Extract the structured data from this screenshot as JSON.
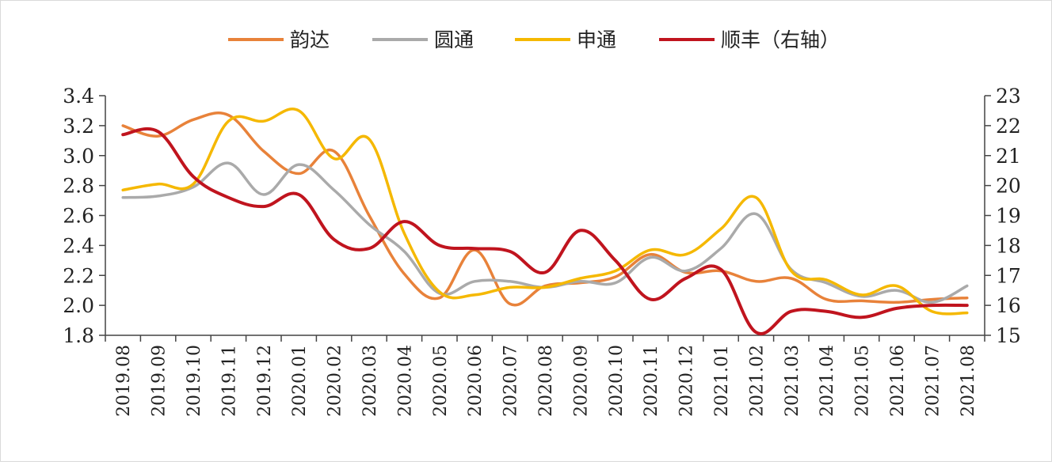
{
  "chart_data": {
    "type": "line",
    "categories": [
      "2019.08",
      "2019.09",
      "2019.10",
      "2019.11",
      "2019.12",
      "2020.01",
      "2020.02",
      "2020.03",
      "2020.04",
      "2020.05",
      "2020.06",
      "2020.07",
      "2020.08",
      "2020.09",
      "2020.10",
      "2020.11",
      "2020.12",
      "2021.01",
      "2021.02",
      "2021.03",
      "2021.04",
      "2021.05",
      "2021.06",
      "2021.07",
      "2021.08"
    ],
    "y_left": {
      "ylim": [
        1.8,
        3.4
      ],
      "ticks": [
        "1.8",
        "2.0",
        "2.2",
        "2.4",
        "2.6",
        "2.8",
        "3.0",
        "3.2",
        "3.4"
      ]
    },
    "y_right": {
      "ylim": [
        15,
        23
      ],
      "ticks": [
        "15",
        "16",
        "17",
        "18",
        "19",
        "20",
        "21",
        "22",
        "23"
      ]
    },
    "legend_position": "top",
    "grid": false,
    "series": [
      {
        "name": "韵达",
        "axis": "left",
        "color": "#E8823A",
        "values": [
          3.2,
          3.13,
          3.24,
          3.27,
          3.03,
          2.88,
          3.03,
          2.6,
          2.21,
          2.05,
          2.37,
          2.01,
          2.13,
          2.15,
          2.19,
          2.34,
          2.22,
          2.23,
          2.16,
          2.18,
          2.04,
          2.03,
          2.02,
          2.04,
          2.05
        ]
      },
      {
        "name": "圆通",
        "axis": "left",
        "color": "#AAAAAA",
        "values": [
          2.72,
          2.73,
          2.79,
          2.95,
          2.74,
          2.94,
          2.77,
          2.54,
          2.36,
          2.08,
          2.16,
          2.16,
          2.12,
          2.16,
          2.15,
          2.32,
          2.23,
          2.38,
          2.61,
          2.24,
          2.15,
          2.06,
          2.1,
          2.02,
          2.13
        ]
      },
      {
        "name": "申通",
        "axis": "left",
        "color": "#F5B800",
        "values": [
          2.77,
          2.81,
          2.81,
          3.23,
          3.23,
          3.3,
          2.98,
          3.11,
          2.48,
          2.09,
          2.07,
          2.12,
          2.12,
          2.18,
          2.23,
          2.37,
          2.34,
          2.51,
          2.72,
          2.23,
          2.17,
          2.07,
          2.13,
          1.96,
          1.95
        ]
      },
      {
        "name": "顺丰（右轴）",
        "axis": "right",
        "color": "#C0141E",
        "values": [
          21.7,
          21.8,
          20.3,
          19.6,
          19.3,
          19.7,
          18.2,
          17.9,
          18.8,
          18.0,
          17.9,
          17.8,
          17.1,
          18.5,
          17.5,
          16.2,
          16.9,
          17.2,
          15.1,
          15.8,
          15.8,
          15.6,
          15.9,
          16.0,
          16.0
        ]
      }
    ]
  }
}
